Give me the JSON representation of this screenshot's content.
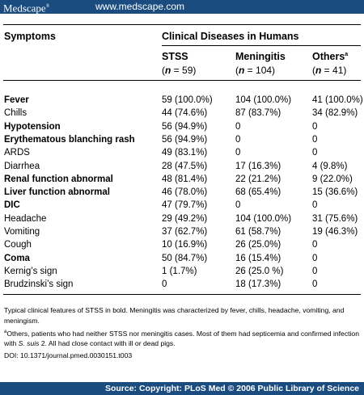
{
  "header": {
    "brand": "Medscape",
    "brand_mark": "®",
    "url": "www.medscape.com"
  },
  "table": {
    "col_symptoms": "Symptoms",
    "col_group": "Clinical Diseases in Humans",
    "columns": [
      {
        "name": "STSS",
        "n_prefix": "(",
        "n_var": "n",
        "n_eq": " = 59)"
      },
      {
        "name": "Meningitis",
        "n_prefix": "(",
        "n_var": "n",
        "n_eq": " = 104)"
      },
      {
        "name": "Others",
        "sup": "a",
        "n_prefix": "(",
        "n_var": "n",
        "n_eq": " = 41)"
      }
    ],
    "rows": [
      {
        "symptom": "Fever",
        "bold": true,
        "stss": "59 (100.0%)",
        "men": "104 (100.0%)",
        "oth": "41 (100.0%)"
      },
      {
        "symptom": "Chills",
        "bold": false,
        "stss": "44 (74.6%)",
        "men": "87 (83.7%)",
        "oth": "34 (82.9%)"
      },
      {
        "symptom": "Hypotension",
        "bold": true,
        "stss": "56 (94.9%)",
        "men": "0",
        "oth": "0"
      },
      {
        "symptom": "Erythematous blanching rash",
        "bold": true,
        "stss": "56 (94.9%)",
        "men": "0",
        "oth": "0"
      },
      {
        "symptom": "ARDS",
        "bold": false,
        "stss": "49 (83.1%)",
        "men": "0",
        "oth": "0"
      },
      {
        "symptom": "Diarrhea",
        "bold": false,
        "stss": "28 (47.5%)",
        "men": "17 (16.3%)",
        "oth": "4 (9.8%)"
      },
      {
        "symptom": "Renal function abnormal",
        "bold": true,
        "stss": "48 (81.4%)",
        "men": "22 (21.2%)",
        "oth": "9 (22.0%)"
      },
      {
        "symptom": "Liver function abnormal",
        "bold": true,
        "stss": "46 (78.0%)",
        "men": "68 (65.4%)",
        "oth": "15 (36.6%)"
      },
      {
        "symptom": "DIC",
        "bold": true,
        "stss": "47 (79.7%)",
        "men": "0",
        "oth": "0"
      },
      {
        "symptom": "Headache",
        "bold": false,
        "stss": "29 (49.2%)",
        "men": "104 (100.0%)",
        "oth": "31 (75.6%)"
      },
      {
        "symptom": "Vomiting",
        "bold": false,
        "stss": "37 (62.7%)",
        "men": "61 (58.7%)",
        "oth": "19 (46.3%)"
      },
      {
        "symptom": "Cough",
        "bold": false,
        "stss": "10 (16.9%)",
        "men": "26 (25.0%)",
        "oth": "0"
      },
      {
        "symptom": "Coma",
        "bold": true,
        "stss": "50 (84.7%)",
        "men": "16 (15.4%)",
        "oth": "0"
      },
      {
        "symptom": "Kernig’s sign",
        "bold": false,
        "stss": "1 (1.7%)",
        "men": "26 (25.0 %)",
        "oth": "0"
      },
      {
        "symptom": "Brudzinski’s sign",
        "bold": false,
        "stss": "0",
        "men": "18 (17.3%)",
        "oth": "0"
      }
    ]
  },
  "footnotes": {
    "note1": "Typical clinical features of STSS in bold. Meningitis was characterized by fever, chills, headache, vomiting, and meningism.",
    "note2_sup": "a",
    "note2_a": "Others, patients who had neither STSS nor meningitis cases. Most of them had septicemia and confirmed infection with ",
    "note2_italic": "S. suis",
    "note2_b": " 2. All had close contact with ill or dead pigs.",
    "doi": "DOI: 10.1371/journal.pmed.0030151.t003"
  },
  "source": "Source: Copyright: PLoS Med © 2006 Public Library of Science"
}
